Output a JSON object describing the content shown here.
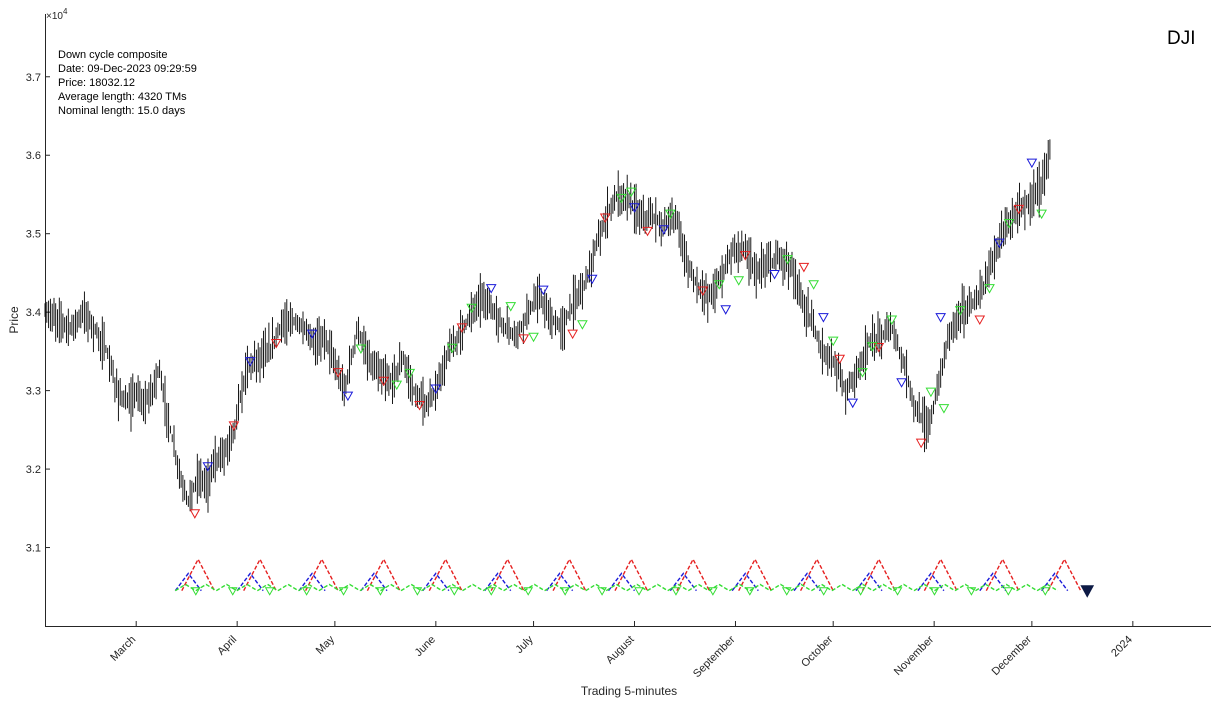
{
  "chart_data": {
    "type": "line",
    "symbol": "DJI",
    "ylabel": "Price",
    "xlabel": "Trading 5-minutes",
    "y_multiplier": "×10",
    "y_exponent": "4",
    "ylim": [
      3.0,
      3.78
    ],
    "xlim": [
      "2023-02-01",
      "2024-01-25"
    ],
    "grid": false,
    "y_ticks": [
      "3.1",
      "3.2",
      "3.3",
      "3.4",
      "3.5",
      "3.6",
      "3.7"
    ],
    "x_ticks": [
      {
        "label": "March",
        "date": "2023-03-01"
      },
      {
        "label": "April",
        "date": "2023-04-01"
      },
      {
        "label": "May",
        "date": "2023-05-01"
      },
      {
        "label": "June",
        "date": "2023-06-01"
      },
      {
        "label": "July",
        "date": "2023-07-01"
      },
      {
        "label": "August",
        "date": "2023-08-01"
      },
      {
        "label": "September",
        "date": "2023-09-01"
      },
      {
        "label": "October",
        "date": "2023-10-01"
      },
      {
        "label": "November",
        "date": "2023-11-01"
      },
      {
        "label": "December",
        "date": "2023-12-01"
      },
      {
        "label": "2024",
        "date": "2024-01-01"
      }
    ],
    "info": [
      "Down cycle composite",
      "Date: 09-Dec-2023 09:29:59",
      "Price: 18032.12",
      "Average length: 4320 TMs",
      "Nominal length: 15.0 days"
    ],
    "price": [
      [
        "2023-02-01",
        3.4
      ],
      [
        "2023-02-05",
        3.39
      ],
      [
        "2023-02-09",
        3.38
      ],
      [
        "2023-02-13",
        3.4
      ],
      [
        "2023-02-16",
        3.38
      ],
      [
        "2023-02-20",
        3.35
      ],
      [
        "2023-02-23",
        3.3
      ],
      [
        "2023-02-27",
        3.28
      ],
      [
        "2023-03-01",
        3.3
      ],
      [
        "2023-03-03",
        3.28
      ],
      [
        "2023-03-06",
        3.3
      ],
      [
        "2023-03-08",
        3.33
      ],
      [
        "2023-03-10",
        3.28
      ],
      [
        "2023-03-13",
        3.22
      ],
      [
        "2023-03-15",
        3.18
      ],
      [
        "2023-03-17",
        3.16
      ],
      [
        "2023-03-20",
        3.19
      ],
      [
        "2023-03-23",
        3.18
      ],
      [
        "2023-03-25",
        3.21
      ],
      [
        "2023-03-28",
        3.22
      ],
      [
        "2023-03-31",
        3.25
      ],
      [
        "2023-04-04",
        3.33
      ],
      [
        "2023-04-07",
        3.34
      ],
      [
        "2023-04-11",
        3.35
      ],
      [
        "2023-04-14",
        3.38
      ],
      [
        "2023-04-18",
        3.39
      ],
      [
        "2023-04-21",
        3.38
      ],
      [
        "2023-04-25",
        3.36
      ],
      [
        "2023-04-28",
        3.37
      ],
      [
        "2023-05-02",
        3.32
      ],
      [
        "2023-05-04",
        3.3
      ],
      [
        "2023-05-08",
        3.38
      ],
      [
        "2023-05-11",
        3.34
      ],
      [
        "2023-05-15",
        3.32
      ],
      [
        "2023-05-18",
        3.31
      ],
      [
        "2023-05-22",
        3.34
      ],
      [
        "2023-05-25",
        3.3
      ],
      [
        "2023-05-29",
        3.28
      ],
      [
        "2023-06-01",
        3.3
      ],
      [
        "2023-06-05",
        3.35
      ],
      [
        "2023-06-08",
        3.37
      ],
      [
        "2023-06-12",
        3.4
      ],
      [
        "2023-06-15",
        3.42
      ],
      [
        "2023-06-19",
        3.4
      ],
      [
        "2023-06-22",
        3.38
      ],
      [
        "2023-06-26",
        3.37
      ],
      [
        "2023-06-29",
        3.4
      ],
      [
        "2023-07-03",
        3.42
      ],
      [
        "2023-07-06",
        3.39
      ],
      [
        "2023-07-10",
        3.38
      ],
      [
        "2023-07-13",
        3.41
      ],
      [
        "2023-07-17",
        3.44
      ],
      [
        "2023-07-20",
        3.48
      ],
      [
        "2023-07-24",
        3.53
      ],
      [
        "2023-07-27",
        3.55
      ],
      [
        "2023-07-31",
        3.54
      ],
      [
        "2023-08-03",
        3.52
      ],
      [
        "2023-08-07",
        3.52
      ],
      [
        "2023-08-10",
        3.51
      ],
      [
        "2023-08-14",
        3.52
      ],
      [
        "2023-08-17",
        3.46
      ],
      [
        "2023-08-21",
        3.43
      ],
      [
        "2023-08-24",
        3.42
      ],
      [
        "2023-08-28",
        3.45
      ],
      [
        "2023-08-31",
        3.48
      ],
      [
        "2023-09-04",
        3.48
      ],
      [
        "2023-09-07",
        3.45
      ],
      [
        "2023-09-11",
        3.46
      ],
      [
        "2023-09-14",
        3.47
      ],
      [
        "2023-09-18",
        3.46
      ],
      [
        "2023-09-21",
        3.42
      ],
      [
        "2023-09-25",
        3.38
      ],
      [
        "2023-09-28",
        3.35
      ],
      [
        "2023-10-02",
        3.33
      ],
      [
        "2023-10-05",
        3.3
      ],
      [
        "2023-10-09",
        3.33
      ],
      [
        "2023-10-12",
        3.36
      ],
      [
        "2023-10-16",
        3.37
      ],
      [
        "2023-10-19",
        3.38
      ],
      [
        "2023-10-23",
        3.33
      ],
      [
        "2023-10-26",
        3.28
      ],
      [
        "2023-10-30",
        3.25
      ],
      [
        "2023-11-02",
        3.3
      ],
      [
        "2023-11-06",
        3.38
      ],
      [
        "2023-11-09",
        3.4
      ],
      [
        "2023-11-13",
        3.41
      ],
      [
        "2023-11-16",
        3.43
      ],
      [
        "2023-11-20",
        3.48
      ],
      [
        "2023-11-23",
        3.51
      ],
      [
        "2023-11-27",
        3.53
      ],
      [
        "2023-11-30",
        3.54
      ],
      [
        "2023-12-04",
        3.56
      ],
      [
        "2023-12-07",
        3.62
      ]
    ],
    "markers": {
      "red": [
        [
          "2023-03-19",
          3.143
        ],
        [
          "2023-03-31",
          3.255
        ],
        [
          "2023-04-13",
          3.36
        ],
        [
          "2023-05-02",
          3.323
        ],
        [
          "2023-05-16",
          3.312
        ],
        [
          "2023-05-27",
          3.281
        ],
        [
          "2023-06-09",
          3.38
        ],
        [
          "2023-06-28",
          3.366
        ],
        [
          "2023-07-13",
          3.372
        ],
        [
          "2023-07-23",
          3.52
        ],
        [
          "2023-08-05",
          3.503
        ],
        [
          "2023-08-22",
          3.427
        ],
        [
          "2023-09-04",
          3.472
        ],
        [
          "2023-09-22",
          3.457
        ],
        [
          "2023-10-03",
          3.34
        ],
        [
          "2023-10-15",
          3.355
        ],
        [
          "2023-10-28",
          3.233
        ],
        [
          "2023-11-15",
          3.39
        ],
        [
          "2023-11-27",
          3.531
        ]
      ],
      "blue": [
        [
          "2023-03-23",
          3.203
        ],
        [
          "2023-04-05",
          3.337
        ],
        [
          "2023-04-24",
          3.372
        ],
        [
          "2023-05-05",
          3.293
        ],
        [
          "2023-06-01",
          3.302
        ],
        [
          "2023-06-18",
          3.43
        ],
        [
          "2023-07-04",
          3.428
        ],
        [
          "2023-07-19",
          3.442
        ],
        [
          "2023-08-01",
          3.533
        ],
        [
          "2023-08-10",
          3.505
        ],
        [
          "2023-08-29",
          3.403
        ],
        [
          "2023-09-13",
          3.448
        ],
        [
          "2023-09-28",
          3.393
        ],
        [
          "2023-10-07",
          3.284
        ],
        [
          "2023-10-22",
          3.31
        ],
        [
          "2023-11-03",
          3.393
        ],
        [
          "2023-11-21",
          3.488
        ],
        [
          "2023-12-01",
          3.59
        ]
      ],
      "green": [
        [
          "2023-05-09",
          3.353
        ],
        [
          "2023-05-20",
          3.307
        ],
        [
          "2023-05-24",
          3.322
        ],
        [
          "2023-06-06",
          3.354
        ],
        [
          "2023-06-12",
          3.405
        ],
        [
          "2023-06-24",
          3.407
        ],
        [
          "2023-07-01",
          3.368
        ],
        [
          "2023-07-16",
          3.384
        ],
        [
          "2023-07-28",
          3.545
        ],
        [
          "2023-07-31",
          3.553
        ],
        [
          "2023-08-12",
          3.525
        ],
        [
          "2023-08-27",
          3.435
        ],
        [
          "2023-09-02",
          3.44
        ],
        [
          "2023-09-17",
          3.467
        ],
        [
          "2023-09-25",
          3.435
        ],
        [
          "2023-10-01",
          3.363
        ],
        [
          "2023-10-10",
          3.323
        ],
        [
          "2023-10-13",
          3.356
        ],
        [
          "2023-10-19",
          3.39
        ],
        [
          "2023-10-31",
          3.298
        ],
        [
          "2023-11-04",
          3.277
        ],
        [
          "2023-11-09",
          3.402
        ],
        [
          "2023-11-18",
          3.43
        ],
        [
          "2023-11-24",
          3.513
        ],
        [
          "2023-12-04",
          3.525
        ]
      ]
    },
    "cycle_composite": {
      "red_peaks": [
        "2023-03-20",
        "2023-04-08",
        "2023-04-27",
        "2023-05-16",
        "2023-06-04",
        "2023-06-23",
        "2023-07-12",
        "2023-07-31",
        "2023-08-19",
        "2023-09-07",
        "2023-09-26",
        "2023-10-15",
        "2023-11-03",
        "2023-11-22",
        "2023-12-11"
      ],
      "blue_peaks": [
        "2023-03-17",
        "2023-04-05",
        "2023-04-24",
        "2023-05-13",
        "2023-06-01",
        "2023-06-20",
        "2023-07-09",
        "2023-07-28",
        "2023-08-16",
        "2023-09-04",
        "2023-09-23",
        "2023-10-12",
        "2023-10-31",
        "2023-11-19",
        "2023-12-08"
      ],
      "green_start": "2023-03-13",
      "green_end": "2023-12-13",
      "green_period_days": 6.3,
      "end_marker": {
        "date": "2023-12-18",
        "color": "#0d1a45"
      }
    },
    "colors": {
      "price": "#000000",
      "red": "#e62020",
      "blue": "#1a1ad9",
      "green": "#33dd33",
      "axis": "#262626"
    }
  }
}
